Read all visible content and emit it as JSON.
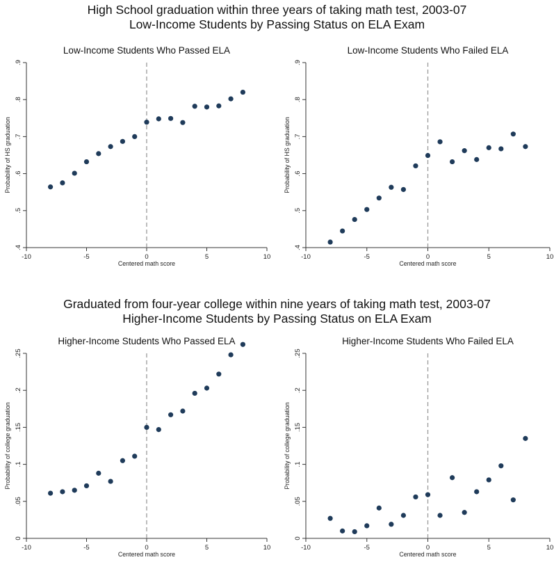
{
  "sections": [
    {
      "title_line1": "High School graduation within three years of taking math test, 2003-07",
      "title_line2": "Low-Income Students by Passing Status on ELA Exam"
    },
    {
      "title_line1": "Graduated from four-year college within nine years of taking math test, 2003-07",
      "title_line2": "Higher-Income Students by Passing Status on ELA Exam"
    }
  ],
  "colors": {
    "point": "#1f3b5a",
    "cutoff_line": "#999999",
    "axis": "#333333"
  },
  "chart_data": [
    {
      "type": "scatter",
      "title": "Low-Income Students Who Passed ELA",
      "xlabel": "Centered math score",
      "ylabel": "Probability of HS graduation",
      "xlim": [
        -10,
        10
      ],
      "ylim": [
        0.4,
        0.9
      ],
      "xticks": [
        -10,
        -5,
        0,
        5,
        10
      ],
      "xtick_labels": [
        "-10",
        "-5",
        "0",
        "5",
        "10"
      ],
      "yticks": [
        0.4,
        0.5,
        0.6,
        0.7,
        0.8,
        0.9
      ],
      "ytick_labels": [
        ".4",
        ".5",
        ".6",
        ".7",
        ".8",
        ".9"
      ],
      "cutoff": 0,
      "x": [
        -8,
        -7,
        -6,
        -5,
        -4,
        -3,
        -2,
        -1,
        0,
        1,
        2,
        3,
        4,
        5,
        6,
        7,
        8
      ],
      "y": [
        0.564,
        0.575,
        0.601,
        0.632,
        0.654,
        0.673,
        0.687,
        0.7,
        0.739,
        0.748,
        0.749,
        0.738,
        0.782,
        0.78,
        0.783,
        0.802,
        0.82
      ]
    },
    {
      "type": "scatter",
      "title": "Low-Income Students Who Failed ELA",
      "xlabel": "Centered math score",
      "ylabel": "Probability of HS graduation",
      "xlim": [
        -10,
        10
      ],
      "ylim": [
        0.4,
        0.9
      ],
      "xticks": [
        -10,
        -5,
        0,
        5,
        10
      ],
      "xtick_labels": [
        "-10",
        "-5",
        "0",
        "5",
        "10"
      ],
      "yticks": [
        0.4,
        0.5,
        0.6,
        0.7,
        0.8,
        0.9
      ],
      "ytick_labels": [
        ".4",
        ".5",
        ".6",
        ".7",
        ".8",
        ".9"
      ],
      "cutoff": 0,
      "x": [
        -8,
        -7,
        -6,
        -5,
        -4,
        -3,
        -2,
        -1,
        0,
        1,
        2,
        3,
        4,
        5,
        6,
        7,
        8
      ],
      "y": [
        0.415,
        0.445,
        0.476,
        0.503,
        0.534,
        0.563,
        0.557,
        0.621,
        0.649,
        0.686,
        0.632,
        0.662,
        0.638,
        0.67,
        0.667,
        0.707,
        0.673
      ]
    },
    {
      "type": "scatter",
      "title": "Higher-Income Students Who Passed ELA",
      "xlabel": "Centered math score",
      "ylabel": "Probability of college graduation",
      "xlim": [
        -10,
        10
      ],
      "ylim": [
        0,
        0.25
      ],
      "xticks": [
        -10,
        -5,
        0,
        5,
        10
      ],
      "xtick_labels": [
        "-10",
        "-5",
        "0",
        "5",
        "10"
      ],
      "yticks": [
        0,
        0.05,
        0.1,
        0.15,
        0.2,
        0.25
      ],
      "ytick_labels": [
        "0",
        ".05",
        ".1",
        ".15",
        ".2",
        ".25"
      ],
      "cutoff": 0,
      "x": [
        -8,
        -7,
        -6,
        -5,
        -4,
        -3,
        -2,
        -1,
        0,
        1,
        2,
        3,
        4,
        5,
        6,
        7,
        8
      ],
      "y": [
        0.061,
        0.063,
        0.065,
        0.071,
        0.088,
        0.077,
        0.105,
        0.111,
        0.15,
        0.147,
        0.167,
        0.172,
        0.196,
        0.203,
        0.222,
        0.248,
        0.262
      ]
    },
    {
      "type": "scatter",
      "title": "Higher-Income Students Who Failed ELA",
      "xlabel": "Centered math score",
      "ylabel": "Probability of college graduation",
      "xlim": [
        -10,
        10
      ],
      "ylim": [
        0,
        0.25
      ],
      "xticks": [
        -10,
        -5,
        0,
        5,
        10
      ],
      "xtick_labels": [
        "-10",
        "-5",
        "0",
        "5",
        "10"
      ],
      "yticks": [
        0,
        0.05,
        0.1,
        0.15,
        0.2,
        0.25
      ],
      "ytick_labels": [
        "0",
        ".05",
        ".1",
        ".15",
        ".2",
        ".25"
      ],
      "cutoff": 0,
      "x": [
        -8,
        -7,
        -6,
        -5,
        -4,
        -3,
        -2,
        -1,
        0,
        1,
        2,
        3,
        4,
        5,
        6,
        7,
        8
      ],
      "y": [
        0.027,
        0.01,
        0.009,
        0.017,
        0.041,
        0.019,
        0.031,
        0.056,
        0.059,
        0.031,
        0.082,
        0.035,
        0.063,
        0.079,
        0.098,
        0.052,
        0.135
      ]
    }
  ]
}
